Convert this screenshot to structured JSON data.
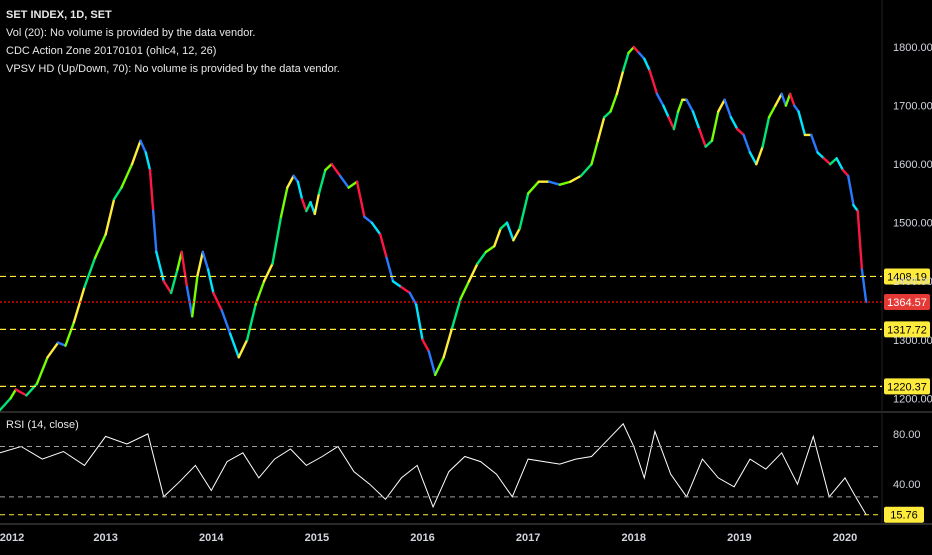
{
  "legend": {
    "title": "SET INDEX, 1D, SET",
    "line1": "Vol (20): No volume is provided by the data vendor.",
    "line2": "CDC Action Zone 20170101 (ohlc4, 12, 26)",
    "line3": "VPSV HD (Up/Down, 70): No volume is provided by the data vendor."
  },
  "rsi_label": "RSI (14, close)",
  "colors": {
    "background": "#000000",
    "guide_line": "#ffeb3b",
    "current_price_line": "#ff0000",
    "current_price_tag": "#e53935",
    "tag_text": "#000000",
    "rsi_line": "#ffffff",
    "axis_text": "#d1d4dc",
    "divider": "#555555"
  },
  "chart_data": [
    {
      "type": "line",
      "title": "SET INDEX, 1D, SET",
      "x_ticks": [
        "2012",
        "2013",
        "2014",
        "2015",
        "2016",
        "2017",
        "2018",
        "2019",
        "2020"
      ],
      "y_ticks": [
        1200,
        1300,
        1400,
        1500,
        1600,
        1700,
        1800
      ],
      "y_tick_labels": [
        "1200.00",
        "1300.00",
        "1400.00",
        "1500.00",
        "1600.00",
        "1700.00",
        "1800.00"
      ],
      "ylim": [
        1180,
        1860
      ],
      "xlim": [
        2012.0,
        2020.35
      ],
      "grid": false,
      "series": [
        {
          "x": [
            2012.0,
            2012.1,
            2012.15,
            2012.25,
            2012.35,
            2012.45,
            2012.55,
            2012.62,
            2012.7,
            2012.8,
            2012.9,
            2013.0,
            2013.08,
            2013.15,
            2013.25,
            2013.33,
            2013.38,
            2013.42,
            2013.45,
            2013.48,
            2013.55,
            2013.62,
            2013.68,
            2013.72,
            2013.77,
            2013.82,
            2013.87,
            2013.92,
            2013.97,
            2014.02,
            2014.1,
            2014.18,
            2014.26,
            2014.34,
            2014.42,
            2014.5,
            2014.58,
            2014.66,
            2014.72,
            2014.78,
            2014.82,
            2014.86,
            2014.9,
            2014.94,
            2014.98,
            2015.02,
            2015.08,
            2015.14,
            2015.22,
            2015.3,
            2015.38,
            2015.45,
            2015.52,
            2015.6,
            2015.66,
            2015.72,
            2015.8,
            2015.88,
            2015.94,
            2016.0,
            2016.06,
            2016.12,
            2016.2,
            2016.28,
            2016.36,
            2016.44,
            2016.52,
            2016.6,
            2016.68,
            2016.74,
            2016.8,
            2016.86,
            2016.92,
            2017.0,
            2017.1,
            2017.2,
            2017.3,
            2017.4,
            2017.5,
            2017.6,
            2017.66,
            2017.72,
            2017.78,
            2017.84,
            2017.9,
            2017.95,
            2018.0,
            2018.05,
            2018.1,
            2018.15,
            2018.22,
            2018.28,
            2018.33,
            2018.38,
            2018.42,
            2018.46,
            2018.5,
            2018.56,
            2018.62,
            2018.68,
            2018.74,
            2018.8,
            2018.86,
            2018.92,
            2018.98,
            2019.04,
            2019.1,
            2019.16,
            2019.22,
            2019.28,
            2019.34,
            2019.4,
            2019.44,
            2019.48,
            2019.52,
            2019.56,
            2019.62,
            2019.68,
            2019.74,
            2019.8,
            2019.86,
            2019.92,
            2019.98,
            2020.03,
            2020.08,
            2020.12,
            2020.16,
            2020.2
          ],
          "values": [
            1180,
            1200,
            1215,
            1205,
            1225,
            1270,
            1295,
            1290,
            1330,
            1390,
            1440,
            1480,
            1540,
            1560,
            1600,
            1640,
            1620,
            1590,
            1520,
            1450,
            1400,
            1380,
            1420,
            1450,
            1390,
            1340,
            1410,
            1450,
            1420,
            1380,
            1350,
            1310,
            1270,
            1300,
            1360,
            1400,
            1430,
            1510,
            1560,
            1580,
            1570,
            1540,
            1520,
            1535,
            1515,
            1550,
            1590,
            1600,
            1580,
            1560,
            1570,
            1510,
            1500,
            1480,
            1440,
            1400,
            1390,
            1380,
            1360,
            1300,
            1280,
            1240,
            1270,
            1320,
            1370,
            1400,
            1430,
            1450,
            1460,
            1490,
            1500,
            1470,
            1490,
            1550,
            1570,
            1570,
            1565,
            1570,
            1580,
            1600,
            1640,
            1680,
            1690,
            1720,
            1760,
            1790,
            1800,
            1790,
            1780,
            1760,
            1720,
            1700,
            1680,
            1660,
            1690,
            1710,
            1710,
            1690,
            1660,
            1630,
            1640,
            1690,
            1710,
            1680,
            1660,
            1650,
            1620,
            1600,
            1630,
            1680,
            1700,
            1720,
            1700,
            1720,
            1700,
            1690,
            1650,
            1650,
            1620,
            1610,
            1600,
            1610,
            1590,
            1580,
            1530,
            1520,
            1420,
            1364.57
          ]
        }
      ],
      "reference_lines": [
        {
          "value": 1408.19,
          "label": "1408.19",
          "style": "dashed"
        },
        {
          "value": 1364.57,
          "label": "1364.57",
          "style": "dotted",
          "current": true
        },
        {
          "value": 1317.72,
          "label": "1317.72",
          "style": "dashed"
        },
        {
          "value": 1220.37,
          "label": "1220.37",
          "style": "dashed"
        }
      ]
    },
    {
      "type": "line",
      "title": "RSI (14, close)",
      "ylim": [
        10,
        95
      ],
      "y_ticks": [
        40,
        80
      ],
      "y_tick_labels": [
        "40.00",
        "80.00"
      ],
      "grid": false,
      "series": [
        {
          "x": [
            2012.0,
            2012.2,
            2012.4,
            2012.6,
            2012.8,
            2013.0,
            2013.2,
            2013.4,
            2013.55,
            2013.7,
            2013.85,
            2014.0,
            2014.15,
            2014.3,
            2014.45,
            2014.6,
            2014.75,
            2014.9,
            2015.05,
            2015.2,
            2015.35,
            2015.5,
            2015.65,
            2015.8,
            2015.95,
            2016.1,
            2016.25,
            2016.4,
            2016.55,
            2016.7,
            2016.85,
            2017.0,
            2017.15,
            2017.3,
            2017.45,
            2017.6,
            2017.75,
            2017.9,
            2018.0,
            2018.1,
            2018.2,
            2018.35,
            2018.5,
            2018.65,
            2018.8,
            2018.95,
            2019.1,
            2019.25,
            2019.4,
            2019.55,
            2019.7,
            2019.85,
            2020.0,
            2020.1,
            2020.2
          ],
          "values": [
            65,
            70,
            60,
            66,
            55,
            78,
            72,
            80,
            30,
            42,
            55,
            35,
            58,
            65,
            45,
            60,
            68,
            55,
            62,
            70,
            50,
            40,
            28,
            45,
            55,
            22,
            50,
            62,
            58,
            48,
            30,
            60,
            58,
            56,
            60,
            62,
            75,
            88,
            70,
            45,
            82,
            48,
            30,
            60,
            45,
            38,
            60,
            52,
            65,
            40,
            78,
            30,
            45,
            30,
            15.76
          ]
        }
      ],
      "reference_lines": [
        {
          "value": 70,
          "style": "dashed"
        },
        {
          "value": 30,
          "style": "dashed"
        },
        {
          "value": 15.76,
          "label": "15.76",
          "style": "dashed",
          "current": true
        }
      ]
    }
  ]
}
